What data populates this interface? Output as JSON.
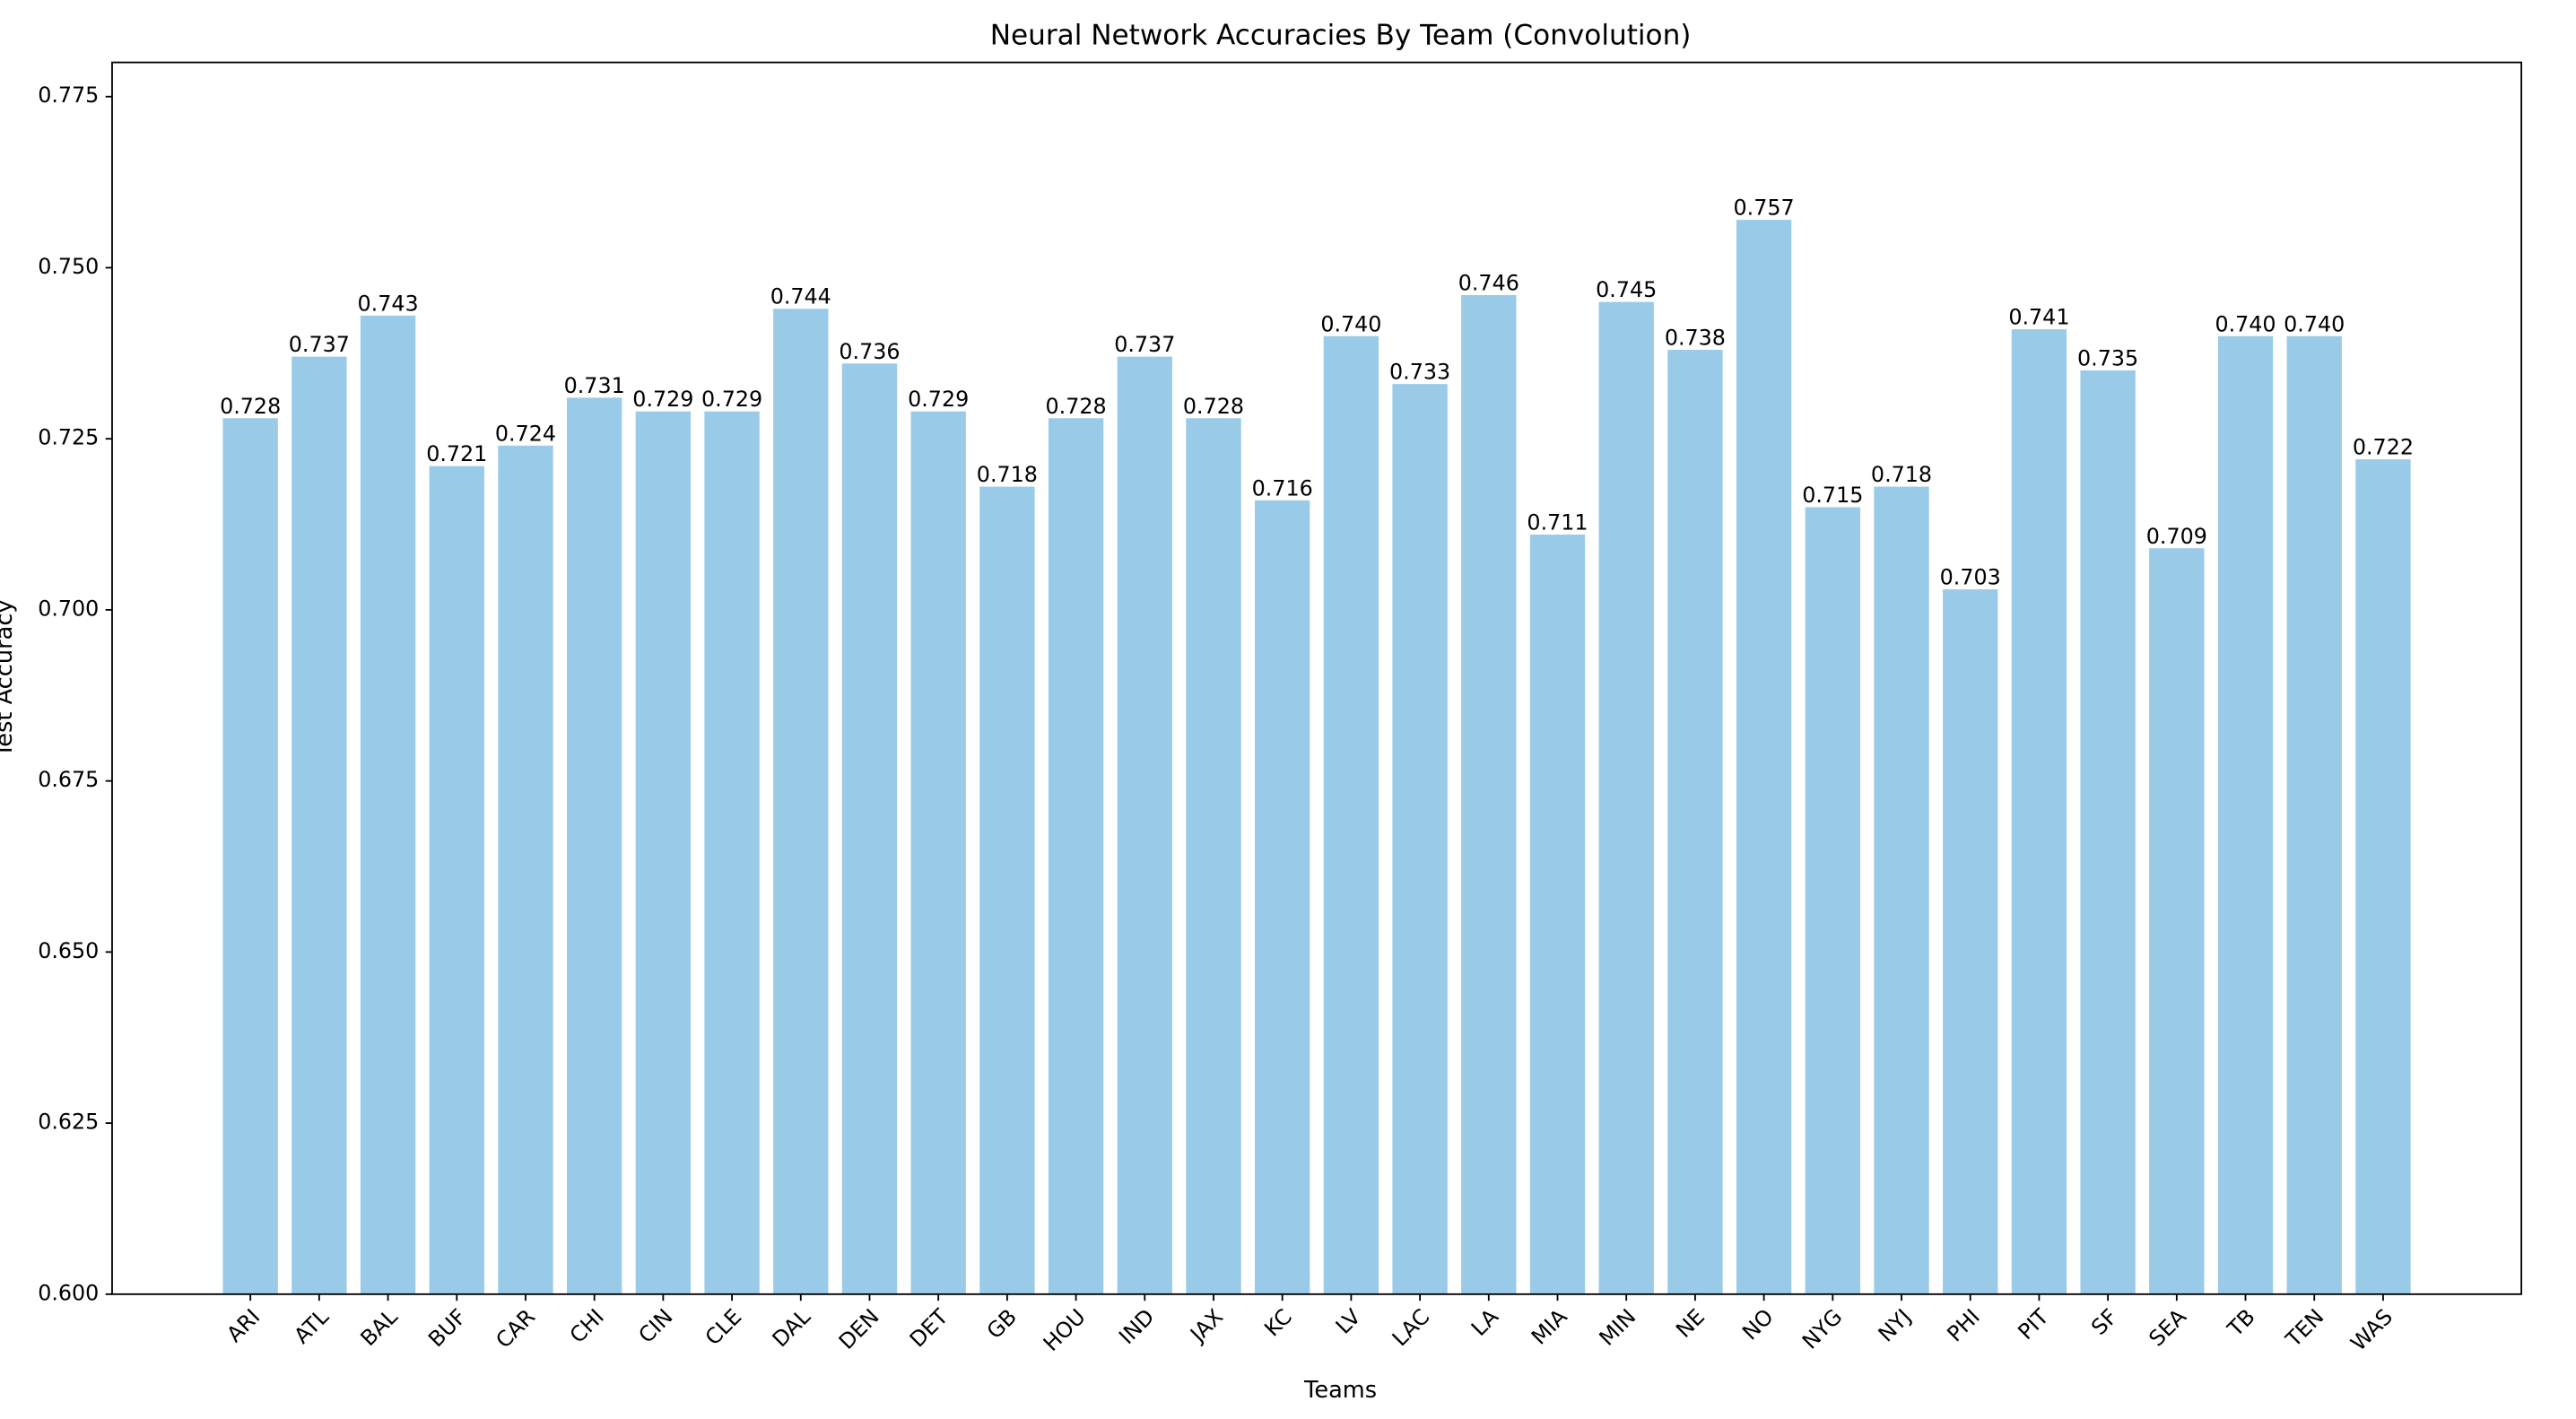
{
  "chart_data": {
    "type": "bar",
    "title": "Neural Network Accuracies By Team (Convolution)",
    "x_label": "Teams",
    "y_label": "Test Accuracy",
    "categories": [
      "ARI",
      "ATL",
      "BAL",
      "BUF",
      "CAR",
      "CHI",
      "CIN",
      "CLE",
      "DAL",
      "DEN",
      "DET",
      "GB",
      "HOU",
      "IND",
      "JAX",
      "KC",
      "LV",
      "LAC",
      "LA",
      "MIA",
      "MIN",
      "NE",
      "NO",
      "NYG",
      "NYJ",
      "PHI",
      "PIT",
      "SF",
      "SEA",
      "TB",
      "TEN",
      "WAS"
    ],
    "values": [
      0.728,
      0.737,
      0.743,
      0.721,
      0.724,
      0.731,
      0.729,
      0.729,
      0.744,
      0.736,
      0.729,
      0.718,
      0.728,
      0.737,
      0.728,
      0.716,
      0.74,
      0.733,
      0.746,
      0.711,
      0.745,
      0.738,
      0.757,
      0.715,
      0.718,
      0.703,
      0.741,
      0.735,
      0.709,
      0.74,
      0.74,
      0.722
    ],
    "value_labels": [
      "0.728",
      "0.737",
      "0.743",
      "0.721",
      "0.724",
      "0.731",
      "0.729",
      "0.729",
      "0.744",
      "0.736",
      "0.729",
      "0.718",
      "0.728",
      "0.737",
      "0.728",
      "0.716",
      "0.740",
      "0.733",
      "0.746",
      "0.711",
      "0.745",
      "0.738",
      "0.757",
      "0.715",
      "0.718",
      "0.703",
      "0.741",
      "0.735",
      "0.709",
      "0.740",
      "0.740",
      "0.722"
    ],
    "color": "#99cbe8",
    "ylim": [
      0.6,
      0.78
    ],
    "yticks": [
      {
        "value": 0.6,
        "label": "0.600"
      },
      {
        "value": 0.625,
        "label": "0.625"
      },
      {
        "value": 0.65,
        "label": "0.650"
      },
      {
        "value": 0.675,
        "label": "0.675"
      },
      {
        "value": 0.7,
        "label": "0.700"
      },
      {
        "value": 0.725,
        "label": "0.725"
      },
      {
        "value": 0.75,
        "label": "0.750"
      },
      {
        "value": 0.775,
        "label": "0.775"
      }
    ],
    "grid": false
  }
}
